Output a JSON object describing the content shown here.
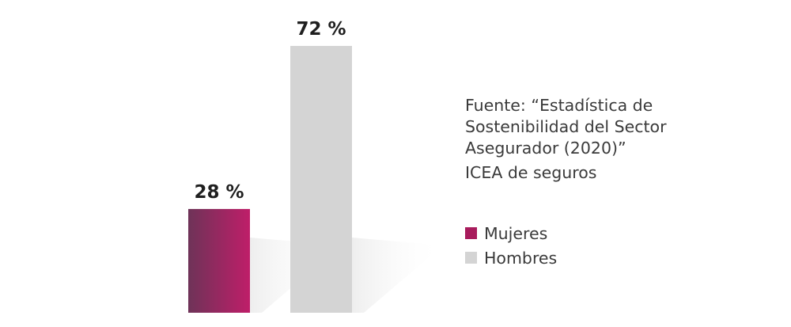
{
  "chart_data": {
    "type": "bar",
    "categories": [
      "Mujeres",
      "Hombres"
    ],
    "values": [
      28,
      72
    ],
    "value_labels": [
      "28 %",
      "72 %"
    ],
    "ylim": [
      0,
      100
    ],
    "grid": false,
    "legend_placement": "right",
    "colors": {
      "Mujeres": "#a81b5c",
      "Mujeres_gradient_start": "#6e3358",
      "Mujeres_gradient_end": "#bf1e69",
      "Hombres": "#d4d4d4"
    }
  },
  "source": {
    "lines": [
      "Fuente: “Estadística de",
      "Sostenibilidad del Sector",
      "Asegurador (2020)”"
    ],
    "org": "ICEA de seguros"
  },
  "legend": {
    "items": [
      {
        "label": "Mujeres",
        "color": "#a81b5c"
      },
      {
        "label": "Hombres",
        "color": "#d4d4d4"
      }
    ]
  }
}
